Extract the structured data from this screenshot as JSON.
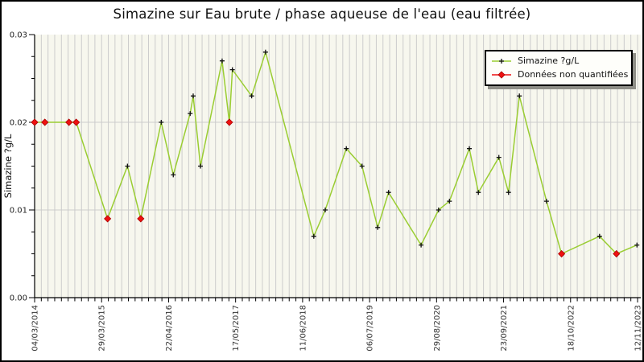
{
  "window": {
    "title": "Simazine sur Eau brute / phase aqueuse de l'eau (eau filtrée)"
  },
  "chart_data": {
    "type": "line",
    "title": "Simazine sur Eau brute / phase aqueuse de l'eau (eau filtrée)",
    "xlabel": "",
    "ylabel": "Simazine ?g/L",
    "ylim": [
      0,
      0.03
    ],
    "y_ticks": [
      0,
      0.01,
      0.02,
      0.03
    ],
    "y_tick_labels": [
      "0.00",
      "0.01",
      "0.02",
      "0.03"
    ],
    "y_minor_tick_step": 0.0025,
    "x_tick_labels": [
      "04/03/2014",
      "29/03/2015",
      "22/04/2016",
      "17/05/2017",
      "11/06/2018",
      "06/07/2019",
      "29/08/2020",
      "23/09/2021",
      "18/10/2022",
      "12/11/2023"
    ],
    "grid": {
      "vertical_minor_divisions_per_major": 10,
      "horizontal_gridlines_at": [
        0.01,
        0.02
      ]
    },
    "legend": {
      "position": "top-right",
      "entries": [
        {
          "label": "Simazine ?g/L",
          "marker": "black-plus-on-green-line"
        },
        {
          "label": "Données non quantifiées",
          "marker": "red-diamond-on-red-line"
        }
      ]
    },
    "series": [
      {
        "name": "Simazine ?g/L",
        "points": [
          {
            "x_frac": 0.0,
            "value": 0.02,
            "quantified": false
          },
          {
            "x_frac": 0.017,
            "value": 0.02,
            "quantified": false
          },
          {
            "x_frac": 0.057,
            "value": 0.02,
            "quantified": false
          },
          {
            "x_frac": 0.069,
            "value": 0.02,
            "quantified": false
          },
          {
            "x_frac": 0.121,
            "value": 0.009,
            "quantified": false
          },
          {
            "x_frac": 0.154,
            "value": 0.015,
            "quantified": true
          },
          {
            "x_frac": 0.176,
            "value": 0.009,
            "quantified": false
          },
          {
            "x_frac": 0.21,
            "value": 0.02,
            "quantified": true
          },
          {
            "x_frac": 0.23,
            "value": 0.014,
            "quantified": true
          },
          {
            "x_frac": 0.258,
            "value": 0.021,
            "quantified": true
          },
          {
            "x_frac": 0.263,
            "value": 0.023,
            "quantified": true
          },
          {
            "x_frac": 0.275,
            "value": 0.015,
            "quantified": true
          },
          {
            "x_frac": 0.311,
            "value": 0.027,
            "quantified": true
          },
          {
            "x_frac": 0.323,
            "value": 0.02,
            "quantified": false
          },
          {
            "x_frac": 0.328,
            "value": 0.026,
            "quantified": true
          },
          {
            "x_frac": 0.36,
            "value": 0.023,
            "quantified": true
          },
          {
            "x_frac": 0.383,
            "value": 0.028,
            "quantified": true
          },
          {
            "x_frac": 0.463,
            "value": 0.007,
            "quantified": true
          },
          {
            "x_frac": 0.482,
            "value": 0.01,
            "quantified": true
          },
          {
            "x_frac": 0.517,
            "value": 0.017,
            "quantified": true
          },
          {
            "x_frac": 0.543,
            "value": 0.015,
            "quantified": true
          },
          {
            "x_frac": 0.569,
            "value": 0.008,
            "quantified": true
          },
          {
            "x_frac": 0.587,
            "value": 0.012,
            "quantified": true
          },
          {
            "x_frac": 0.641,
            "value": 0.006,
            "quantified": true
          },
          {
            "x_frac": 0.67,
            "value": 0.01,
            "quantified": true
          },
          {
            "x_frac": 0.688,
            "value": 0.011,
            "quantified": true
          },
          {
            "x_frac": 0.721,
            "value": 0.017,
            "quantified": true
          },
          {
            "x_frac": 0.736,
            "value": 0.012,
            "quantified": true
          },
          {
            "x_frac": 0.77,
            "value": 0.016,
            "quantified": true
          },
          {
            "x_frac": 0.786,
            "value": 0.012,
            "quantified": true
          },
          {
            "x_frac": 0.804,
            "value": 0.023,
            "quantified": true
          },
          {
            "x_frac": 0.849,
            "value": 0.011,
            "quantified": true
          },
          {
            "x_frac": 0.874,
            "value": 0.005,
            "quantified": false
          },
          {
            "x_frac": 0.937,
            "value": 0.007,
            "quantified": true
          },
          {
            "x_frac": 0.965,
            "value": 0.005,
            "quantified": false
          },
          {
            "x_frac": 0.999,
            "value": 0.006,
            "quantified": true
          }
        ]
      }
    ],
    "colors": {
      "line": "#9acd32",
      "quantified_marker": "#111111",
      "nonquantified_marker": "#ee1111",
      "nonquantified_marker_edge": "#aa0000",
      "plot_bg": "#f7f7ee",
      "grid": "#cccccc",
      "axis": "#000000",
      "tick_label": "#333333",
      "legend_shadow": "#8f8f88"
    }
  }
}
